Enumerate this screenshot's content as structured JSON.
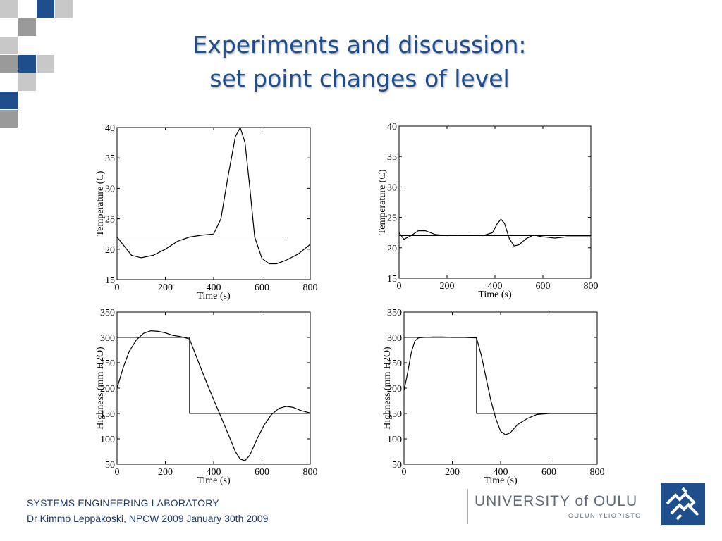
{
  "slide": {
    "title_line1": "Experiments and discussion:",
    "title_line2": "set point changes of level"
  },
  "footer": {
    "lab": "SYSTEMS ENGINEERING LABORATORY",
    "author": "Dr Kimmo Leppäkoski,  NPCW 2009 January 30th 2009",
    "university": "UNIVERSITY of OULU",
    "university_sub": "OULUN YLIOPISTO",
    "logo_icon": "university-crest-icon"
  },
  "colors": {
    "title": "#1f4e8c",
    "accent_dark": "#1f4e8c",
    "accent_gray": "#9a9a9a",
    "accent_light": "#c8c8c8",
    "logo": "#1f4e8c"
  },
  "chart_data": [
    {
      "type": "line",
      "ylabel": "Temperature (C)",
      "xlabel": "Time (s)",
      "xlim": [
        0,
        800
      ],
      "ylim": [
        15,
        40
      ],
      "xticks": [
        0,
        200,
        400,
        600,
        800
      ],
      "yticks": [
        15,
        20,
        25,
        30,
        35,
        40
      ],
      "series": [
        {
          "x": [
            0,
            30,
            60,
            100,
            150,
            200,
            250,
            300,
            350,
            400,
            430,
            460,
            490,
            510,
            530,
            550,
            570,
            600,
            630,
            660,
            700,
            750,
            800
          ],
          "y": [
            22,
            20.5,
            19,
            18.6,
            19,
            20,
            21.3,
            22,
            22.3,
            22.5,
            25,
            32,
            38.5,
            40,
            37.5,
            30,
            22,
            18.5,
            17.6,
            17.6,
            18.2,
            19.2,
            20.8
          ]
        },
        {
          "x": [
            0,
            700
          ],
          "y": [
            22,
            22
          ]
        }
      ]
    },
    {
      "type": "line",
      "ylabel": "Temperature (C)",
      "xlabel": "Time (s)",
      "xlim": [
        0,
        800
      ],
      "ylim": [
        15,
        40
      ],
      "xticks": [
        0,
        200,
        400,
        600,
        800
      ],
      "yticks": [
        15,
        20,
        25,
        30,
        35,
        40
      ],
      "series": [
        {
          "x": [
            0,
            20,
            50,
            80,
            110,
            150,
            200,
            250,
            300,
            350,
            390,
            410,
            425,
            440,
            460,
            480,
            500,
            530,
            560,
            600,
            650,
            700,
            800
          ],
          "y": [
            22.5,
            21.4,
            22,
            22.8,
            22.8,
            22.2,
            22,
            22.1,
            22.1,
            22,
            22.5,
            24,
            24.7,
            24,
            21.5,
            20.3,
            20.5,
            21.5,
            22.1,
            21.8,
            21.6,
            21.8,
            21.8
          ]
        },
        {
          "x": [
            0,
            800
          ],
          "y": [
            22,
            22
          ]
        }
      ]
    },
    {
      "type": "line",
      "ylabel": "Highness (mm H2O)",
      "xlabel": "Time (s)",
      "xlim": [
        0,
        800
      ],
      "ylim": [
        50,
        350
      ],
      "xticks": [
        0,
        200,
        400,
        600,
        800
      ],
      "yticks": [
        50,
        100,
        150,
        200,
        250,
        300,
        350
      ],
      "series": [
        {
          "x": [
            0,
            25,
            50,
            80,
            110,
            140,
            170,
            200,
            230,
            260,
            300,
            340,
            380,
            420,
            460,
            490,
            510,
            530,
            550,
            580,
            610,
            640,
            670,
            700,
            730,
            760,
            800
          ],
          "y": [
            200,
            240,
            272,
            295,
            308,
            313,
            312,
            309,
            304,
            302,
            297,
            248,
            200,
            155,
            110,
            75,
            60,
            57,
            68,
            100,
            128,
            148,
            160,
            164,
            162,
            156,
            151
          ]
        },
        {
          "x": [
            0,
            300,
            300,
            800
          ],
          "y": [
            300,
            300,
            150,
            150
          ]
        }
      ]
    },
    {
      "type": "line",
      "ylabel": "Highness (mm H2O)",
      "xlabel": "Time (s)",
      "xlim": [
        0,
        800
      ],
      "ylim": [
        50,
        350
      ],
      "xticks": [
        0,
        200,
        400,
        600,
        800
      ],
      "yticks": [
        50,
        100,
        150,
        200,
        250,
        300,
        350
      ],
      "series": [
        {
          "x": [
            0,
            15,
            30,
            45,
            60,
            80,
            120,
            160,
            200,
            250,
            300,
            320,
            340,
            360,
            380,
            400,
            420,
            440,
            470,
            510,
            550,
            600,
            650,
            700,
            800
          ],
          "y": [
            195,
            230,
            270,
            293,
            299,
            300,
            301,
            301,
            300,
            300,
            299,
            265,
            220,
            175,
            140,
            115,
            108,
            112,
            128,
            140,
            148,
            150,
            150,
            150,
            150
          ]
        },
        {
          "x": [
            0,
            300,
            300,
            800
          ],
          "y": [
            300,
            300,
            150,
            150
          ]
        }
      ]
    }
  ]
}
